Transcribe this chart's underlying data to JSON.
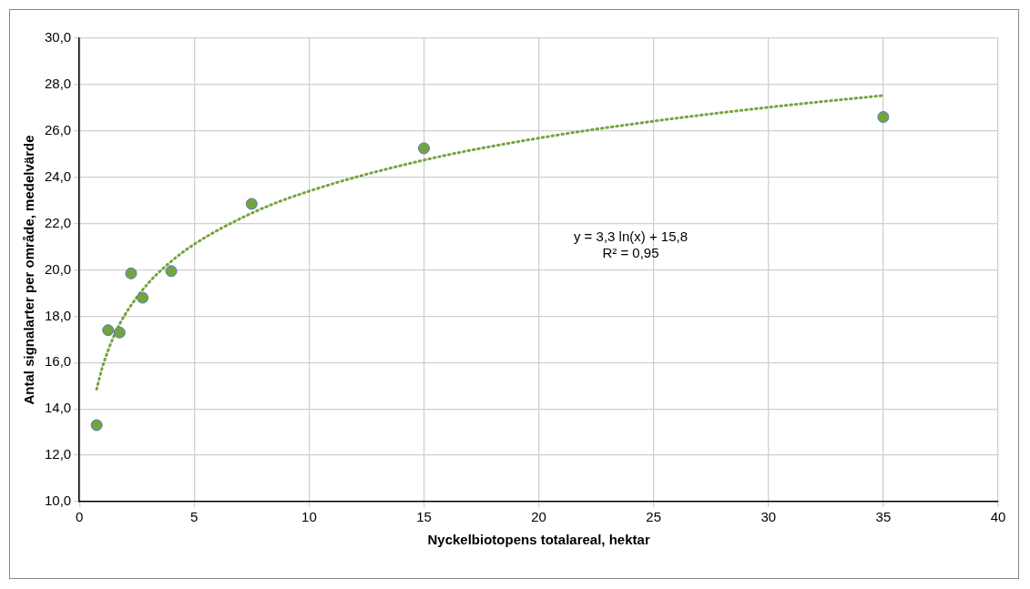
{
  "chart_data": {
    "type": "scatter",
    "xlabel": "Nyckelbiotopens totalareal, hektar",
    "ylabel": "Antal signalarter per område, medelvärde",
    "series": [
      {
        "color": "#77a33f",
        "marker": "circle",
        "x": [
          0.75,
          1.25,
          1.75,
          2.25,
          2.75,
          4,
          7.5,
          15,
          35
        ],
        "values": [
          13.3,
          17.4,
          17.3,
          19.85,
          18.8,
          19.95,
          22.85,
          25.25,
          26.6
        ]
      },
      {
        "type": "line",
        "color": "#77a33f",
        "line_style": "dotted",
        "marker": "none",
        "x": [
          0.75,
          1,
          1.5,
          2,
          3,
          4,
          5,
          7.5,
          10,
          15,
          20,
          25,
          30,
          35
        ],
        "values": [
          14.85,
          15.8,
          17.14,
          18.09,
          19.43,
          20.37,
          21.11,
          22.45,
          23.4,
          24.74,
          25.69,
          26.42,
          27.02,
          27.53
        ]
      }
    ],
    "xlim": [
      0,
      40
    ],
    "xticks": [
      0,
      5,
      10,
      15,
      20,
      25,
      30,
      35,
      40
    ],
    "ylim": [
      10,
      30
    ],
    "yticks": [
      {
        "value": 10,
        "label": "10,0"
      },
      {
        "value": 12,
        "label": "12,0"
      },
      {
        "value": 14,
        "label": "14,0"
      },
      {
        "value": 16,
        "label": "16,0"
      },
      {
        "value": 18,
        "label": "18,0"
      },
      {
        "value": 20,
        "label": "20,0"
      },
      {
        "value": 22,
        "label": "22,0"
      },
      {
        "value": 24,
        "label": "24,0"
      },
      {
        "value": 26,
        "label": "26,0"
      },
      {
        "value": 28,
        "label": "28,0"
      },
      {
        "value": 30,
        "label": "30,0"
      }
    ],
    "grid": true,
    "legend": false,
    "annotations": [
      "y = 3,3 ln(x) + 15,8",
      "R² = 0,95"
    ]
  }
}
